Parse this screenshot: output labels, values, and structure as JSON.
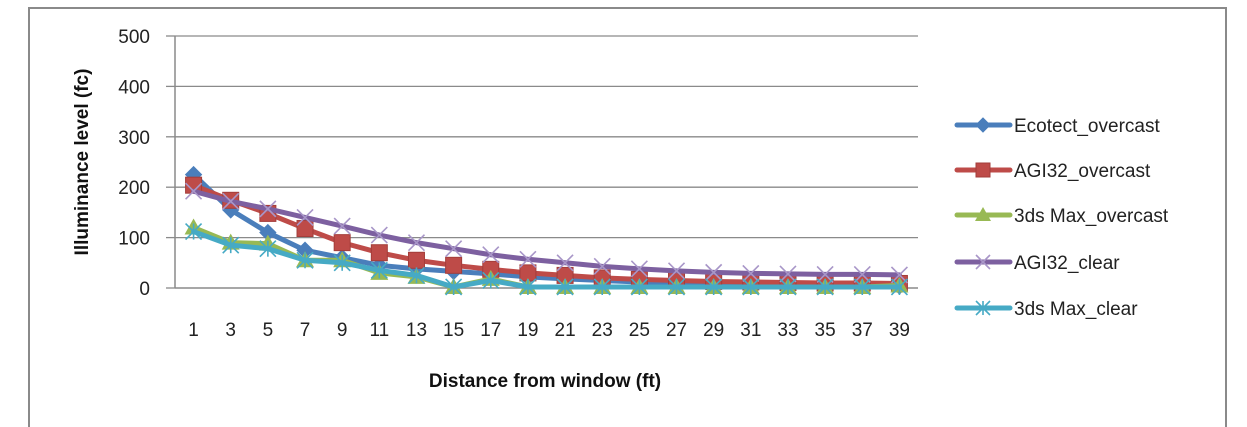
{
  "chart_data": {
    "type": "line",
    "title": "",
    "xlabel": "Distance from window (ft)",
    "ylabel": "Illuminance level (fc)",
    "ylim": [
      0,
      500
    ],
    "yticks": [
      0,
      100,
      200,
      300,
      400,
      500
    ],
    "grid": true,
    "legend_position": "right",
    "categories": [
      "1",
      "3",
      "5",
      "7",
      "9",
      "11",
      "13",
      "15",
      "17",
      "19",
      "21",
      "23",
      "25",
      "27",
      "29",
      "31",
      "33",
      "35",
      "37",
      "39"
    ],
    "series": [
      {
        "name": "Ecotect_overcast",
        "color": "#4a7ebb",
        "marker": "diamond",
        "values": [
          225,
          155,
          110,
          75,
          60,
          45,
          38,
          33,
          28,
          22,
          18,
          15,
          12,
          10,
          8,
          7,
          6,
          5,
          5,
          4
        ]
      },
      {
        "name": "AGI32_overcast",
        "color": "#be4b48",
        "marker": "square",
        "values": [
          204,
          174,
          148,
          118,
          90,
          70,
          55,
          45,
          37,
          30,
          25,
          20,
          17,
          15,
          13,
          12,
          11,
          10,
          10,
          9
        ]
      },
      {
        "name": "3ds Max_overcast",
        "color": "#98b954",
        "marker": "triangle",
        "values": [
          120,
          90,
          88,
          55,
          55,
          30,
          22,
          2,
          18,
          2,
          2,
          2,
          2,
          2,
          2,
          2,
          2,
          2,
          2,
          5
        ]
      },
      {
        "name": "AGI32_clear",
        "color": "#7d60a0",
        "marker": "x",
        "values": [
          192,
          172,
          157,
          140,
          123,
          105,
          90,
          78,
          66,
          57,
          50,
          43,
          38,
          34,
          31,
          29,
          28,
          27,
          27,
          26
        ]
      },
      {
        "name": "3ds Max_clear",
        "color": "#46aac5",
        "marker": "star",
        "values": [
          112,
          85,
          78,
          55,
          50,
          35,
          25,
          2,
          15,
          2,
          2,
          2,
          2,
          2,
          2,
          2,
          2,
          2,
          2,
          2
        ]
      }
    ]
  }
}
